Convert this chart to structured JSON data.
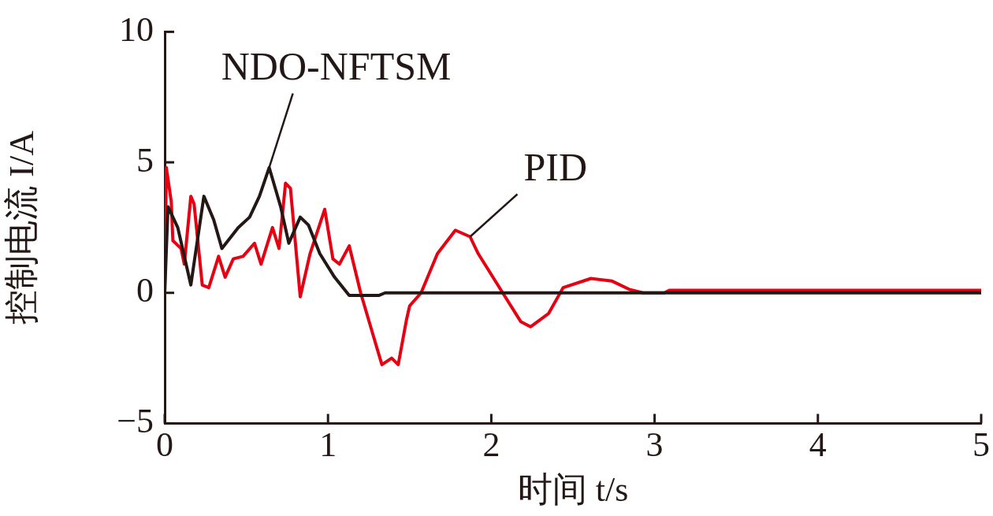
{
  "chart_data": {
    "type": "line",
    "xlabel": "时间 t/s",
    "ylabel": "控制电流 I/A",
    "xlim": [
      0,
      5
    ],
    "xticks": [
      0,
      1,
      2,
      3,
      4,
      5
    ],
    "ylim": [
      -5,
      10
    ],
    "yticks": [
      {
        "value": -5,
        "label": "−5"
      },
      0,
      5,
      10
    ],
    "grid": false,
    "legend": false,
    "marker": "none",
    "line_style": "solid",
    "series": [
      {
        "name": "NDO-NFTSM",
        "color": "#231815",
        "x": [
          0,
          0.02,
          0.08,
          0.16,
          0.24,
          0.3,
          0.35,
          0.45,
          0.52,
          0.58,
          0.64,
          0.71,
          0.76,
          0.83,
          0.88,
          0.95,
          1.04,
          1.13,
          1.31,
          1.35,
          5
        ],
        "values": [
          0,
          3.3,
          2.5,
          0.3,
          3.7,
          2.8,
          1.7,
          2.5,
          2.9,
          3.7,
          4.8,
          3.3,
          1.9,
          2.9,
          2.6,
          1.5,
          0.6,
          -0.1,
          -0.1,
          0,
          0
        ]
      },
      {
        "name": "PID",
        "color": "#e60012",
        "x": [
          0,
          0.01,
          0.04,
          0.05,
          0.1,
          0.12,
          0.16,
          0.18,
          0.23,
          0.27,
          0.33,
          0.37,
          0.42,
          0.48,
          0.55,
          0.59,
          0.66,
          0.7,
          0.74,
          0.77,
          0.83,
          0.89,
          0.98,
          1.03,
          1.07,
          1.13,
          1.2,
          1.28,
          1.33,
          1.39,
          1.43,
          1.48,
          1.5,
          1.57,
          1.67,
          1.78,
          1.87,
          1.92,
          2.07,
          2.18,
          2.24,
          2.35,
          2.44,
          2.61,
          2.74,
          2.85,
          2.93,
          3.06,
          3.09,
          5
        ],
        "values": [
          0,
          4.8,
          3.5,
          2.0,
          1.7,
          1.1,
          3.7,
          3.4,
          0.3,
          0.2,
          1.4,
          0.6,
          1.3,
          1.4,
          1.9,
          1.1,
          2.5,
          1.7,
          4.2,
          4.0,
          -0.15,
          1.5,
          3.2,
          1.3,
          1.1,
          1.8,
          0,
          -1.7,
          -2.75,
          -2.5,
          -2.75,
          -1.05,
          -0.5,
          0,
          1.5,
          2.4,
          2.15,
          1.5,
          0,
          -1.1,
          -1.3,
          -0.8,
          0.2,
          0.55,
          0.45,
          0.12,
          0,
          0,
          0.1,
          0.1
        ]
      }
    ]
  }
}
